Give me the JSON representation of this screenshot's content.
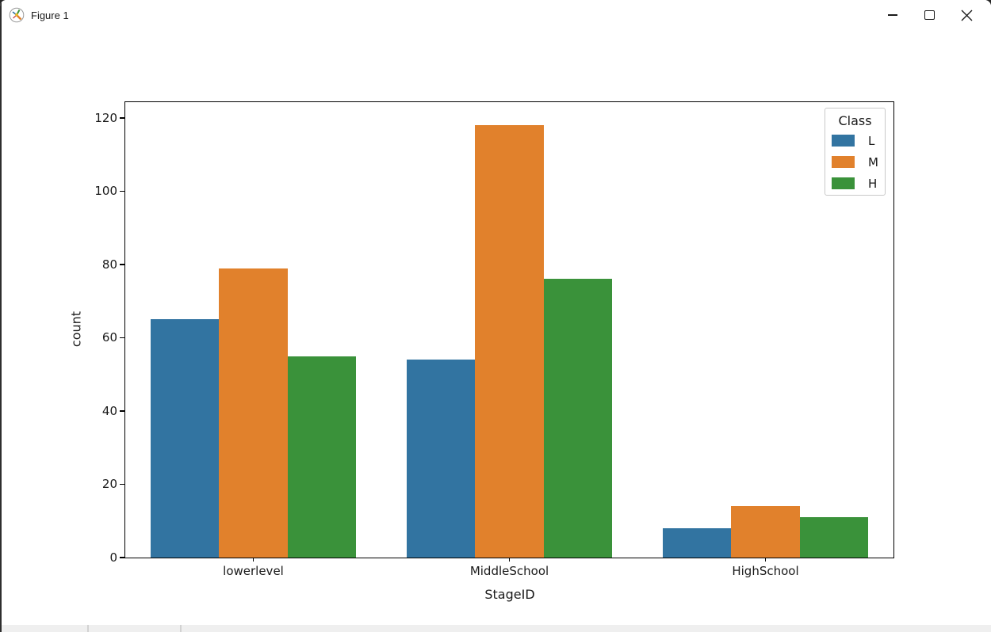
{
  "window": {
    "title": "Figure 1",
    "controls": [
      {
        "id": "minimize",
        "label": "Minimize"
      },
      {
        "id": "maximize",
        "label": "Maximize"
      },
      {
        "id": "close",
        "label": "Close"
      }
    ]
  },
  "chart_data": {
    "type": "bar",
    "categories": [
      "lowerlevel",
      "MiddleSchool",
      "HighSchool"
    ],
    "series": [
      {
        "name": "L",
        "color": "#3274a1",
        "values": [
          65,
          54,
          8
        ]
      },
      {
        "name": "M",
        "color": "#e1812c",
        "values": [
          79,
          118,
          14
        ]
      },
      {
        "name": "H",
        "color": "#3a923a",
        "values": [
          55,
          76,
          11
        ]
      }
    ],
    "xlabel": "StageID",
    "ylabel": "count",
    "ylim": [
      0,
      124.3
    ],
    "yticks": [
      0,
      20,
      40,
      60,
      80,
      100,
      120
    ],
    "legend": {
      "title": "Class",
      "position": "upper right"
    },
    "grid": false,
    "bar_group_width_fraction": 0.8
  },
  "colors": {
    "spine": "#000000",
    "canvas_background": "#ffffff",
    "toolbar_strip": "#efefef"
  }
}
